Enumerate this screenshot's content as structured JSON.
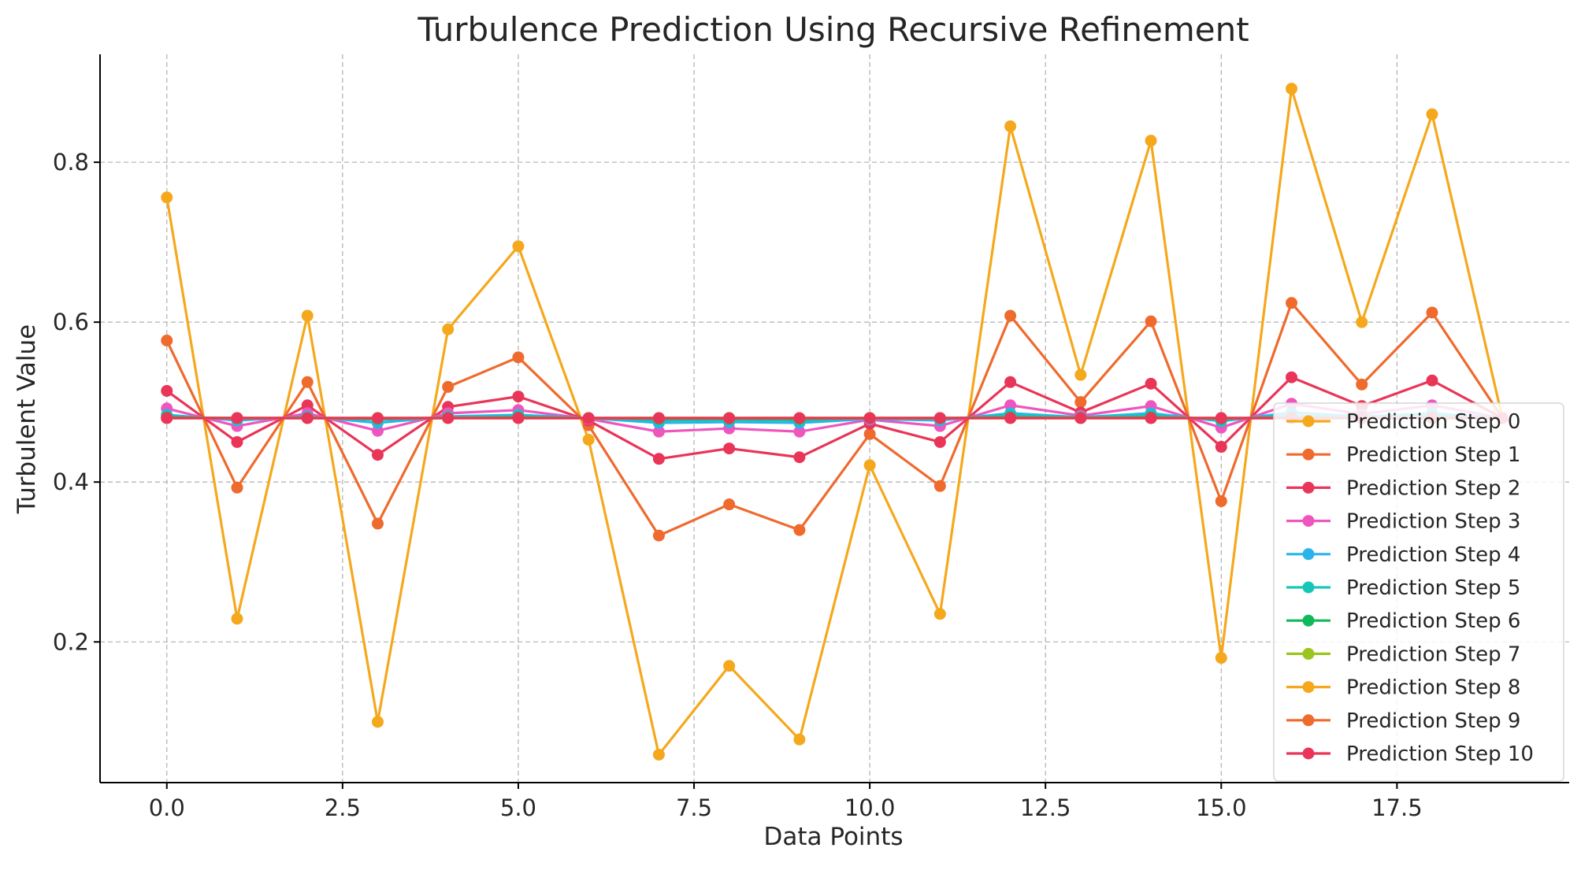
{
  "chart_data": {
    "type": "line",
    "title": "Turbulence Prediction Using Recursive Refinement",
    "xlabel": "Data Points",
    "ylabel": "Turbulent Value",
    "xlim": [
      -0.95,
      19.95
    ],
    "ylim": [
      0.024,
      0.935
    ],
    "xticks": [
      0.0,
      2.5,
      5.0,
      7.5,
      10.0,
      12.5,
      15.0,
      17.5
    ],
    "xtick_labels": [
      "0.0",
      "2.5",
      "5.0",
      "7.5",
      "10.0",
      "12.5",
      "15.0",
      "17.5"
    ],
    "yticks": [
      0.2,
      0.4,
      0.6,
      0.8
    ],
    "ytick_labels": [
      "0.2",
      "0.4",
      "0.6",
      "0.8"
    ],
    "grid": true,
    "legend_position": "bottom-right",
    "x": [
      0,
      1,
      2,
      3,
      4,
      5,
      6,
      7,
      8,
      9,
      10,
      11,
      12,
      13,
      14,
      15,
      16,
      17,
      18,
      19
    ],
    "series": [
      {
        "name": "Prediction Step 0",
        "color": "#f5a81c",
        "values": [
          0.756,
          0.229,
          0.608,
          0.1,
          0.591,
          0.695,
          0.453,
          0.059,
          0.17,
          0.078,
          0.421,
          0.235,
          0.845,
          0.534,
          0.827,
          0.18,
          0.892,
          0.6,
          0.86,
          0.48
        ]
      },
      {
        "name": "Prediction Step 1",
        "color": "#ef6a2d",
        "values": [
          0.577,
          0.393,
          0.525,
          0.348,
          0.519,
          0.556,
          0.471,
          0.333,
          0.372,
          0.34,
          0.46,
          0.395,
          0.608,
          0.5,
          0.601,
          0.376,
          0.624,
          0.522,
          0.612,
          0.48
        ]
      },
      {
        "name": "Prediction Step 2",
        "color": "#e93558",
        "values": [
          0.514,
          0.45,
          0.496,
          0.434,
          0.494,
          0.507,
          0.477,
          0.429,
          0.442,
          0.431,
          0.473,
          0.45,
          0.525,
          0.487,
          0.523,
          0.444,
          0.531,
          0.495,
          0.527,
          0.48
        ]
      },
      {
        "name": "Prediction Step 3",
        "color": "#ef56bd",
        "values": [
          0.492,
          0.47,
          0.486,
          0.464,
          0.486,
          0.49,
          0.479,
          0.463,
          0.467,
          0.463,
          0.478,
          0.47,
          0.496,
          0.483,
          0.495,
          0.468,
          0.498,
          0.485,
          0.496,
          0.48
        ]
      },
      {
        "name": "Prediction Step 4",
        "color": "#2bb4ec",
        "values": [
          0.484,
          0.477,
          0.482,
          0.474,
          0.482,
          0.484,
          0.48,
          0.474,
          0.475,
          0.474,
          0.479,
          0.477,
          0.486,
          0.481,
          0.486,
          0.476,
          0.487,
          0.482,
          0.486,
          0.48
        ]
      },
      {
        "name": "Prediction Step 5",
        "color": "#16c7b8",
        "values": [
          0.482,
          0.479,
          0.481,
          0.478,
          0.481,
          0.482,
          0.48,
          0.477,
          0.478,
          0.477,
          0.48,
          0.479,
          0.483,
          0.481,
          0.483,
          0.478,
          0.483,
          0.481,
          0.483,
          0.48
        ]
      },
      {
        "name": "Prediction Step 6",
        "color": "#10b95a",
        "values": [
          0.481,
          0.48,
          0.48,
          0.479,
          0.48,
          0.481,
          0.48,
          0.479,
          0.479,
          0.479,
          0.48,
          0.48,
          0.481,
          0.48,
          0.481,
          0.479,
          0.481,
          0.48,
          0.481,
          0.48
        ]
      },
      {
        "name": "Prediction Step 7",
        "color": "#9cc51f",
        "values": [
          0.48,
          0.48,
          0.48,
          0.48,
          0.48,
          0.48,
          0.48,
          0.48,
          0.48,
          0.48,
          0.48,
          0.48,
          0.48,
          0.48,
          0.48,
          0.48,
          0.48,
          0.48,
          0.48,
          0.48
        ]
      },
      {
        "name": "Prediction Step 8",
        "color": "#f5a81c",
        "values": [
          0.48,
          0.48,
          0.48,
          0.48,
          0.48,
          0.48,
          0.48,
          0.48,
          0.48,
          0.48,
          0.48,
          0.48,
          0.48,
          0.48,
          0.48,
          0.48,
          0.48,
          0.48,
          0.48,
          0.48
        ]
      },
      {
        "name": "Prediction Step 9",
        "color": "#ef6a2d",
        "values": [
          0.48,
          0.48,
          0.48,
          0.48,
          0.48,
          0.48,
          0.48,
          0.48,
          0.48,
          0.48,
          0.48,
          0.48,
          0.48,
          0.48,
          0.48,
          0.48,
          0.48,
          0.48,
          0.48,
          0.48
        ]
      },
      {
        "name": "Prediction Step 10",
        "color": "#e93558",
        "values": [
          0.48,
          0.48,
          0.48,
          0.48,
          0.48,
          0.48,
          0.48,
          0.48,
          0.48,
          0.48,
          0.48,
          0.48,
          0.48,
          0.48,
          0.48,
          0.48,
          0.48,
          0.48,
          0.48,
          0.48
        ]
      }
    ]
  }
}
